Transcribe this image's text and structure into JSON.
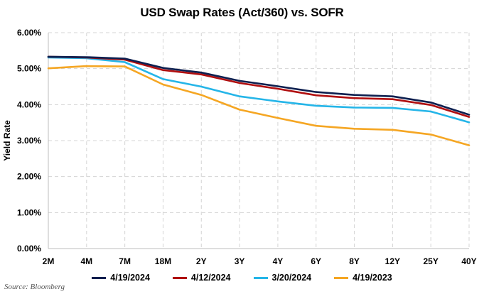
{
  "chart_data": {
    "type": "line",
    "title": "USD Swap Rates (Act/360) vs. SOFR",
    "ylabel": "Yield Rate",
    "xlabel": "",
    "categories": [
      "2M",
      "4M",
      "7M",
      "18M",
      "2Y",
      "3Y",
      "4Y",
      "6Y",
      "8Y",
      "12Y",
      "25Y",
      "40Y"
    ],
    "ylim": [
      0,
      6
    ],
    "yticks": [
      "0.00%",
      "1.00%",
      "2.00%",
      "3.00%",
      "4.00%",
      "5.00%",
      "6.00%"
    ],
    "grid": true,
    "legend_position": "bottom",
    "series": [
      {
        "name": "4/19/2024",
        "color": "#0d1f4f",
        "values": [
          5.33,
          5.32,
          5.28,
          5.02,
          4.89,
          4.66,
          4.51,
          4.35,
          4.27,
          4.23,
          4.06,
          3.72
        ]
      },
      {
        "name": "4/12/2024",
        "color": "#b00f10",
        "values": [
          5.33,
          5.31,
          5.25,
          4.96,
          4.84,
          4.6,
          4.44,
          4.26,
          4.18,
          4.15,
          3.99,
          3.66
        ]
      },
      {
        "name": "3/20/2024",
        "color": "#25b5e8",
        "values": [
          5.31,
          5.29,
          5.18,
          4.71,
          4.5,
          4.23,
          4.09,
          3.97,
          3.92,
          3.91,
          3.81,
          3.51
        ]
      },
      {
        "name": "4/19/2023",
        "color": "#f5a623",
        "values": [
          5.01,
          5.07,
          5.06,
          4.56,
          4.27,
          3.86,
          3.63,
          3.41,
          3.33,
          3.3,
          3.17,
          2.87
        ]
      }
    ],
    "source": "Source: Bloomberg"
  }
}
